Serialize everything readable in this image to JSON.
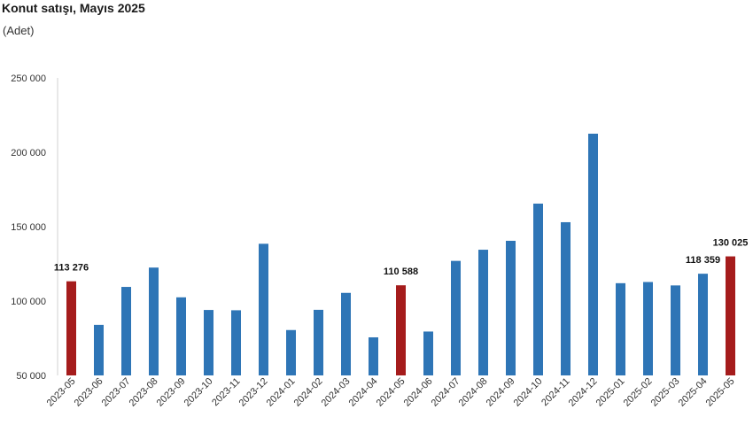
{
  "chart_data": {
    "type": "bar",
    "title": "Konut satışı, Mayıs 2025",
    "subtitle": "(Adet)",
    "xlabel": "",
    "ylabel": "",
    "ylim": [
      50000,
      250000
    ],
    "yticks": [
      50000,
      100000,
      150000,
      200000,
      250000
    ],
    "ytick_labels": [
      "50 000",
      "100 000",
      "150 000",
      "200 000",
      "250 000"
    ],
    "grid": false,
    "colors": {
      "default": "#2e75b6",
      "highlight": "#a51c1c"
    },
    "categories": [
      "2023-05",
      "2023-06",
      "2023-07",
      "2023-08",
      "2023-09",
      "2023-10",
      "2023-11",
      "2023-12",
      "2024-01",
      "2024-02",
      "2024-03",
      "2024-04",
      "2024-05",
      "2024-06",
      "2024-07",
      "2024-08",
      "2024-09",
      "2024-10",
      "2024-11",
      "2024-12",
      "2025-01",
      "2025-02",
      "2025-03",
      "2025-04",
      "2025-05"
    ],
    "values": [
      113276,
      84000,
      109500,
      122500,
      102500,
      94000,
      93800,
      138500,
      80500,
      94100,
      105500,
      75600,
      110588,
      79500,
      127000,
      134500,
      140500,
      165500,
      153000,
      212500,
      112000,
      112800,
      110500,
      118359,
      130025
    ],
    "highlight": [
      true,
      false,
      false,
      false,
      false,
      false,
      false,
      false,
      false,
      false,
      false,
      false,
      true,
      false,
      false,
      false,
      false,
      false,
      false,
      false,
      false,
      false,
      false,
      false,
      true
    ],
    "data_labels": [
      {
        "index": 0,
        "text": "113 276"
      },
      {
        "index": 12,
        "text": "110 588"
      },
      {
        "index": 23,
        "text": "118 359"
      },
      {
        "index": 24,
        "text": "130 025"
      }
    ]
  }
}
